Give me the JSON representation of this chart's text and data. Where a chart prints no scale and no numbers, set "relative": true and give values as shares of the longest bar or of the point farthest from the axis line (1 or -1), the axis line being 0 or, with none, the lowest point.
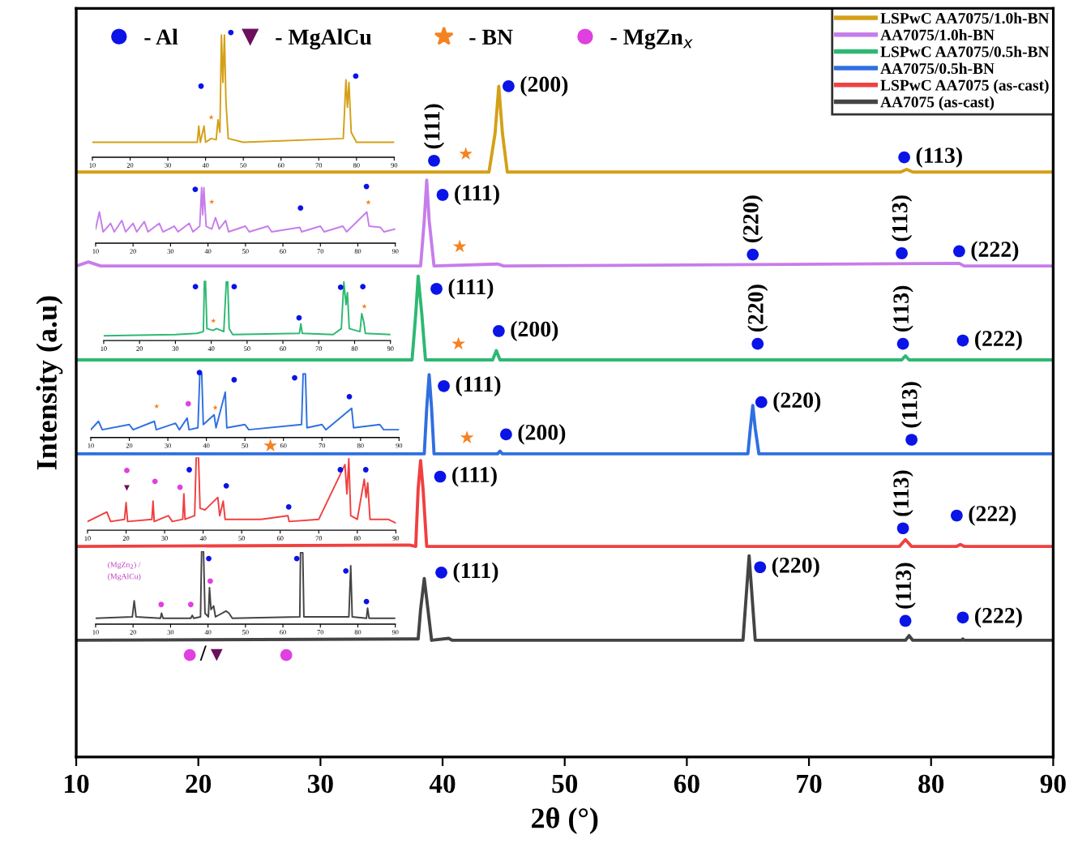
{
  "chart_data": [
    {
      "type": "line",
      "xlabel": "2θ (°)",
      "ylabel": "Intensity (a.u)",
      "relative": true,
      "xlim": [
        10,
        90
      ],
      "xticks": [
        10,
        20,
        30,
        40,
        50,
        60,
        70,
        80,
        90
      ],
      "legend": "top right",
      "series": [
        {
          "name": "LSPwC AA7075/1.0h-BN",
          "color": "#d4a017",
          "x": [
            10,
            43.8,
            44.3,
            44.6,
            44.9,
            45.3,
            77.5,
            78,
            78.5,
            90
          ],
          "values": [
            0.872,
            0.872,
            0.93,
            1.0,
            0.93,
            0.872,
            0.872,
            0.876,
            0.872,
            0.872
          ]
        },
        {
          "name": "AA7075/1.0h-BN",
          "color": "#c77dea",
          "x": [
            10,
            11,
            12,
            38.2,
            38.5,
            38.7,
            38.9,
            39.3,
            44.5,
            45,
            82.3,
            82.7,
            90
          ],
          "values": [
            0.732,
            0.738,
            0.732,
            0.732,
            0.8,
            0.86,
            0.8,
            0.732,
            0.735,
            0.732,
            0.736,
            0.732,
            0.732
          ]
        },
        {
          "name": "LSPwC AA7075/0.5h-BN",
          "color": "#2eb872",
          "x": [
            10,
            37.5,
            37.8,
            38.0,
            38.3,
            38.6,
            44.1,
            44.4,
            44.7,
            77.6,
            77.9,
            78.2,
            90
          ],
          "values": [
            0.592,
            0.592,
            0.66,
            0.717,
            0.66,
            0.592,
            0.592,
            0.606,
            0.592,
            0.592,
            0.598,
            0.592,
            0.592
          ]
        },
        {
          "name": "AA7075/0.5h-BN",
          "color": "#2f6fe0",
          "x": [
            10,
            38.5,
            38.7,
            38.9,
            39.1,
            39.3,
            44.5,
            44.7,
            44.9,
            65.0,
            65.2,
            65.4,
            65.6,
            65.9,
            90
          ],
          "values": [
            0.452,
            0.452,
            0.52,
            0.57,
            0.52,
            0.452,
            0.452,
            0.456,
            0.452,
            0.452,
            0.49,
            0.524,
            0.49,
            0.452,
            0.452
          ]
        },
        {
          "name": "LSPwC AA7075 (as-cast)",
          "color": "#f04040",
          "x": [
            10,
            37.3,
            37.8,
            38.0,
            38.2,
            38.4,
            38.7,
            77.4,
            77.9,
            78.4,
            82.1,
            82.4,
            82.7,
            90
          ],
          "values": [
            0.314,
            0.316,
            0.314,
            0.4,
            0.442,
            0.4,
            0.314,
            0.314,
            0.324,
            0.314,
            0.314,
            0.317,
            0.314,
            0.314
          ]
        },
        {
          "name": "AA7075 (as-cast)",
          "color": "#444444",
          "x": [
            10,
            38.0,
            38.2,
            38.5,
            38.8,
            39.1,
            40.5,
            40.8,
            64.6,
            64.9,
            65.1,
            65.3,
            65.6,
            77.9,
            78.2,
            78.5,
            82.5,
            82.6,
            82.7,
            90
          ],
          "values": [
            0.174,
            0.176,
            0.22,
            0.266,
            0.22,
            0.174,
            0.177,
            0.174,
            0.174,
            0.25,
            0.3,
            0.25,
            0.174,
            0.174,
            0.181,
            0.174,
            0.174,
            0.176,
            0.174,
            0.174
          ]
        },
        {
          "type": "scatter",
          "name": "- Al",
          "color": "#0a14e6",
          "marker": "circle",
          "x": [
            45.4,
            39.3,
            77.8,
            40.0,
            65.4,
            77.6,
            82.3,
            39.5,
            44.6,
            65.8,
            77.7,
            82.6,
            40.1,
            45.2,
            66.1,
            78.4,
            39.8,
            77.7,
            82.1,
            39.9,
            66.0,
            77.9,
            82.6
          ],
          "values": [
            1.0,
            0.889,
            0.894,
            0.838,
            0.749,
            0.751,
            0.754,
            0.698,
            0.635,
            0.616,
            0.616,
            0.621,
            0.553,
            0.481,
            0.529,
            0.473,
            0.418,
            0.341,
            0.36,
            0.275,
            0.283,
            0.203,
            0.208
          ]
        },
        {
          "type": "scatter",
          "name": "- MgAlCu",
          "color": "#6b0f5e",
          "marker": "triangle",
          "x": [
            21.5
          ],
          "values": [
            0.152
          ]
        },
        {
          "type": "scatter",
          "name": "- BN",
          "color": "#f58220",
          "marker": "star",
          "x": [
            41.9,
            41.4,
            41.3,
            42.0,
            25.9
          ],
          "values": [
            0.899,
            0.761,
            0.616,
            0.476,
            0.464
          ]
        },
        {
          "type": "scatter",
          "name": "- MgZn$_{x}$",
          "color": "#e040e0",
          "marker": "circle",
          "x": [
            19.3,
            27.2
          ],
          "values": [
            0.152,
            0.152
          ]
        }
      ],
      "annotations": [
        {
          "text": "(200)",
          "x": 45.4,
          "y": 1.0
        },
        {
          "text": "(111)",
          "x": 39.3,
          "y": 0.889
        },
        {
          "text": "(113)",
          "x": 77.8,
          "y": 0.894
        },
        {
          "text": "(111)",
          "x": 40.0,
          "y": 0.838
        },
        {
          "text": "(220)",
          "x": 65.4,
          "y": 0.749
        },
        {
          "text": "(113)",
          "x": 77.6,
          "y": 0.751
        },
        {
          "text": "(222)",
          "x": 82.3,
          "y": 0.754
        },
        {
          "text": "(111)",
          "x": 39.5,
          "y": 0.698
        },
        {
          "text": "(200)",
          "x": 44.6,
          "y": 0.635
        },
        {
          "text": "(220)",
          "x": 65.8,
          "y": 0.616
        },
        {
          "text": "(113)",
          "x": 77.7,
          "y": 0.616
        },
        {
          "text": "(222)",
          "x": 82.6,
          "y": 0.621
        },
        {
          "text": "(111)",
          "x": 40.1,
          "y": 0.553
        },
        {
          "text": "(200)",
          "x": 45.2,
          "y": 0.481
        },
        {
          "text": "(220)",
          "x": 66.1,
          "y": 0.529
        },
        {
          "text": "(113)",
          "x": 78.4,
          "y": 0.473
        },
        {
          "text": "(111)",
          "x": 39.8,
          "y": 0.418
        },
        {
          "text": "(113)",
          "x": 77.7,
          "y": 0.341
        },
        {
          "text": "(222)",
          "x": 82.1,
          "y": 0.36
        },
        {
          "text": "(111)",
          "x": 39.9,
          "y": 0.275
        },
        {
          "text": "(220)",
          "x": 66.0,
          "y": 0.283
        },
        {
          "text": "(113)",
          "x": 77.9,
          "y": 0.203
        },
        {
          "text": "(222)",
          "x": 82.6,
          "y": 0.208
        },
        {
          "text": "/",
          "x": 20.4,
          "y": 0.152
        }
      ]
    },
    {
      "type": "line",
      "relative": true,
      "xlim": [
        10,
        90
      ],
      "xticks": [
        10,
        20,
        30,
        40,
        50,
        60,
        70,
        80,
        90
      ],
      "series": [
        {
          "color": "#d4a017",
          "x": [
            10,
            37.8,
            38.2,
            38.6,
            39.6,
            40,
            41.5,
            42.8,
            43.3,
            43.8,
            44.2,
            44.6,
            45.0,
            45.4,
            46,
            50,
            76.5,
            77.2,
            77.6,
            78.0,
            78.6,
            80,
            90
          ],
          "values": [
            0.12,
            0.12,
            0.25,
            0.12,
            0.25,
            0.12,
            0.15,
            0.14,
            0.3,
            0.2,
            0.98,
            0.6,
            0.98,
            0.45,
            0.15,
            0.12,
            0.15,
            0.62,
            0.4,
            0.6,
            0.2,
            0.12,
            0.12
          ]
        },
        {
          "type": "scatter",
          "color": "#0a14e6",
          "marker": "circle",
          "x": [
            38.8,
            46.7,
            79.8
          ],
          "values": [
            0.57,
            1.0,
            0.65
          ]
        },
        {
          "type": "scatter",
          "color": "#f58220",
          "marker": "star",
          "x": [
            41.5
          ],
          "values": [
            0.32
          ]
        }
      ]
    },
    {
      "type": "line",
      "relative": true,
      "xlim": [
        10,
        90
      ],
      "xticks": [
        10,
        20,
        30,
        40,
        50,
        60,
        70,
        80,
        90
      ],
      "series": [
        {
          "color": "#c77dea",
          "x": [
            10,
            11,
            12,
            14,
            15,
            17,
            18,
            20,
            21,
            23,
            24,
            27,
            28,
            31,
            32,
            35,
            36,
            37.8,
            38.3,
            38.6,
            38.9,
            39.5,
            41,
            42,
            43,
            44.7,
            45.5,
            50,
            51,
            56,
            57,
            64.5,
            65,
            70,
            71,
            76,
            77,
            82.4,
            83,
            86,
            87,
            90
          ],
          "values": [
            0.25,
            0.55,
            0.2,
            0.35,
            0.2,
            0.4,
            0.2,
            0.35,
            0.2,
            0.38,
            0.2,
            0.35,
            0.2,
            0.3,
            0.2,
            0.35,
            0.2,
            0.3,
            0.98,
            0.5,
            0.98,
            0.3,
            0.25,
            0.45,
            0.25,
            0.4,
            0.2,
            0.3,
            0.2,
            0.3,
            0.2,
            0.28,
            0.2,
            0.3,
            0.2,
            0.3,
            0.2,
            0.55,
            0.3,
            0.28,
            0.2,
            0.25
          ]
        },
        {
          "type": "scatter",
          "color": "#0a14e6",
          "marker": "circle",
          "x": [
            36.6,
            64.7,
            82.3
          ],
          "values": [
            0.95,
            0.62,
            1.0
          ]
        },
        {
          "type": "scatter",
          "color": "#f58220",
          "marker": "star",
          "x": [
            41.0,
            82.8
          ],
          "values": [
            0.73,
            0.72
          ]
        }
      ]
    },
    {
      "type": "line",
      "relative": true,
      "xlim": [
        10,
        90
      ],
      "xticks": [
        10,
        20,
        30,
        40,
        50,
        60,
        70,
        80,
        90
      ],
      "series": [
        {
          "color": "#2eb872",
          "x": [
            10,
            30,
            36,
            37.8,
            38.1,
            38.4,
            38.8,
            40.5,
            41.5,
            43.5,
            44.2,
            44.6,
            45,
            46,
            64.6,
            65,
            65.4,
            74,
            76.3,
            77,
            77.6,
            78,
            78.5,
            81.5,
            82,
            82.6,
            83,
            90
          ],
          "values": [
            0.08,
            0.1,
            0.12,
            0.15,
            1.0,
            1.0,
            0.2,
            0.17,
            0.2,
            0.15,
            0.98,
            0.98,
            0.2,
            0.1,
            0.12,
            0.28,
            0.12,
            0.1,
            0.2,
            0.98,
            0.6,
            0.8,
            0.2,
            0.15,
            0.45,
            0.3,
            0.12,
            0.1
          ]
        },
        {
          "type": "scatter",
          "color": "#0a14e6",
          "marker": "circle",
          "x": [
            35.6,
            46.4,
            64.5,
            76.1,
            82.3
          ],
          "values": [
            0.9,
            0.9,
            0.38,
            0.89,
            0.9
          ]
        },
        {
          "type": "scatter",
          "color": "#f58220",
          "marker": "star",
          "x": [
            40.6,
            82.7
          ],
          "values": [
            0.33,
            0.57
          ]
        }
      ]
    },
    {
      "type": "line",
      "relative": true,
      "xlim": [
        10,
        90
      ],
      "xticks": [
        10,
        20,
        30,
        40,
        50,
        60,
        70,
        80,
        90
      ],
      "series": [
        {
          "color": "#2f6fe0",
          "x": [
            10,
            12,
            13,
            20,
            21,
            26.5,
            27,
            32,
            33,
            35,
            35.5,
            37.8,
            38.3,
            38.8,
            39.2,
            42,
            42.5,
            44.9,
            45.3,
            50,
            51,
            64.7,
            65.1,
            65.7,
            66.1,
            70,
            71,
            77.7,
            78.2,
            85,
            86,
            90
          ],
          "values": [
            0.12,
            0.25,
            0.12,
            0.2,
            0.12,
            0.25,
            0.12,
            0.22,
            0.12,
            0.3,
            0.12,
            0.15,
            0.98,
            0.98,
            0.2,
            0.35,
            0.15,
            0.7,
            0.15,
            0.2,
            0.12,
            0.2,
            0.98,
            0.98,
            0.15,
            0.2,
            0.12,
            0.45,
            0.15,
            0.2,
            0.12,
            0.12
          ]
        },
        {
          "type": "scatter",
          "color": "#0a14e6",
          "marker": "circle",
          "x": [
            38.2,
            47.2,
            62.9,
            77.1
          ],
          "values": [
            1.0,
            0.89,
            0.92,
            0.63
          ]
        },
        {
          "type": "scatter",
          "color": "#f58220",
          "marker": "star",
          "x": [
            27.1,
            42.3
          ],
          "values": [
            0.48,
            0.46
          ]
        },
        {
          "type": "scatter",
          "color": "#e040e0",
          "marker": "circle",
          "x": [
            35.3
          ],
          "values": [
            0.52
          ]
        }
      ]
    },
    {
      "type": "line",
      "relative": true,
      "xlim": [
        10,
        90
      ],
      "xticks": [
        10,
        20,
        30,
        40,
        50,
        60,
        70,
        80,
        90
      ],
      "series": [
        {
          "color": "#f04040",
          "x": [
            10,
            15,
            16,
            19.6,
            20,
            20.4,
            26.7,
            27,
            27.3,
            31,
            32,
            34.7,
            35,
            35.3,
            37.8,
            38.2,
            38.8,
            39.2,
            40.5,
            43.8,
            44.3,
            45.2,
            45.7,
            55,
            62,
            62.3,
            70,
            76.8,
            77.3,
            77.8,
            78.3,
            80,
            81.8,
            82.3,
            82.7,
            83.3,
            88,
            90
          ],
          "values": [
            0.12,
            0.25,
            0.12,
            0.15,
            0.38,
            0.12,
            0.15,
            0.4,
            0.12,
            0.2,
            0.12,
            0.15,
            0.5,
            0.15,
            0.2,
            1.0,
            1.0,
            0.3,
            0.28,
            0.45,
            0.2,
            0.4,
            0.15,
            0.15,
            0.2,
            0.12,
            0.15,
            0.9,
            0.5,
            0.98,
            0.2,
            0.15,
            0.7,
            0.45,
            0.65,
            0.15,
            0.15,
            0.1
          ]
        },
        {
          "type": "scatter",
          "color": "#0a14e6",
          "marker": "circle",
          "x": [
            36.4,
            46.0,
            62.2,
            75.6,
            82.2
          ],
          "values": [
            0.83,
            0.61,
            0.32,
            0.83,
            0.83
          ]
        },
        {
          "type": "scatter",
          "color": "#6b0f5e",
          "marker": "triangle",
          "x": [
            20.2
          ],
          "values": [
            0.58
          ]
        },
        {
          "type": "scatter",
          "color": "#e040e0",
          "marker": "circle",
          "x": [
            20.2,
            27.5,
            34.0
          ],
          "values": [
            0.82,
            0.67,
            0.59
          ]
        }
      ]
    },
    {
      "type": "line",
      "relative": true,
      "xlim": [
        10,
        90
      ],
      "xticks": [
        10,
        20,
        30,
        40,
        50,
        60,
        70,
        80,
        90
      ],
      "annotations": [
        "(MgZn$_{2}$) /",
        "(MgAlCu)"
      ],
      "series": [
        {
          "color": "#444444",
          "x": [
            10,
            19.8,
            20.3,
            20.8,
            27.3,
            27.6,
            28,
            35.4,
            35.8,
            36.2,
            38,
            38.3,
            38.8,
            39.2,
            40.1,
            40.4,
            40.8,
            41.5,
            42,
            44.8,
            45.6,
            46.5,
            64.5,
            64.7,
            65.3,
            65.6,
            77.6,
            78.1,
            78.5,
            82.3,
            82.6,
            83,
            90
          ],
          "values": [
            0.08,
            0.1,
            0.32,
            0.1,
            0.08,
            0.15,
            0.08,
            0.08,
            0.12,
            0.08,
            0.1,
            1.0,
            1.0,
            0.15,
            0.1,
            0.5,
            0.2,
            0.25,
            0.1,
            0.18,
            0.15,
            0.08,
            0.1,
            0.98,
            0.98,
            0.1,
            0.1,
            0.8,
            0.1,
            0.08,
            0.22,
            0.08,
            0.08
          ]
        },
        {
          "type": "scatter",
          "color": "#0a14e6",
          "marker": "circle",
          "x": [
            40.2,
            63.7,
            76.8,
            82.3
          ],
          "values": [
            0.9,
            0.9,
            0.73,
            0.31
          ]
        },
        {
          "type": "scatter",
          "color": "#e040e0",
          "marker": "circle",
          "x": [
            40.6,
            27.5,
            35.4
          ],
          "values": [
            0.59,
            0.27,
            0.27
          ]
        }
      ]
    }
  ]
}
